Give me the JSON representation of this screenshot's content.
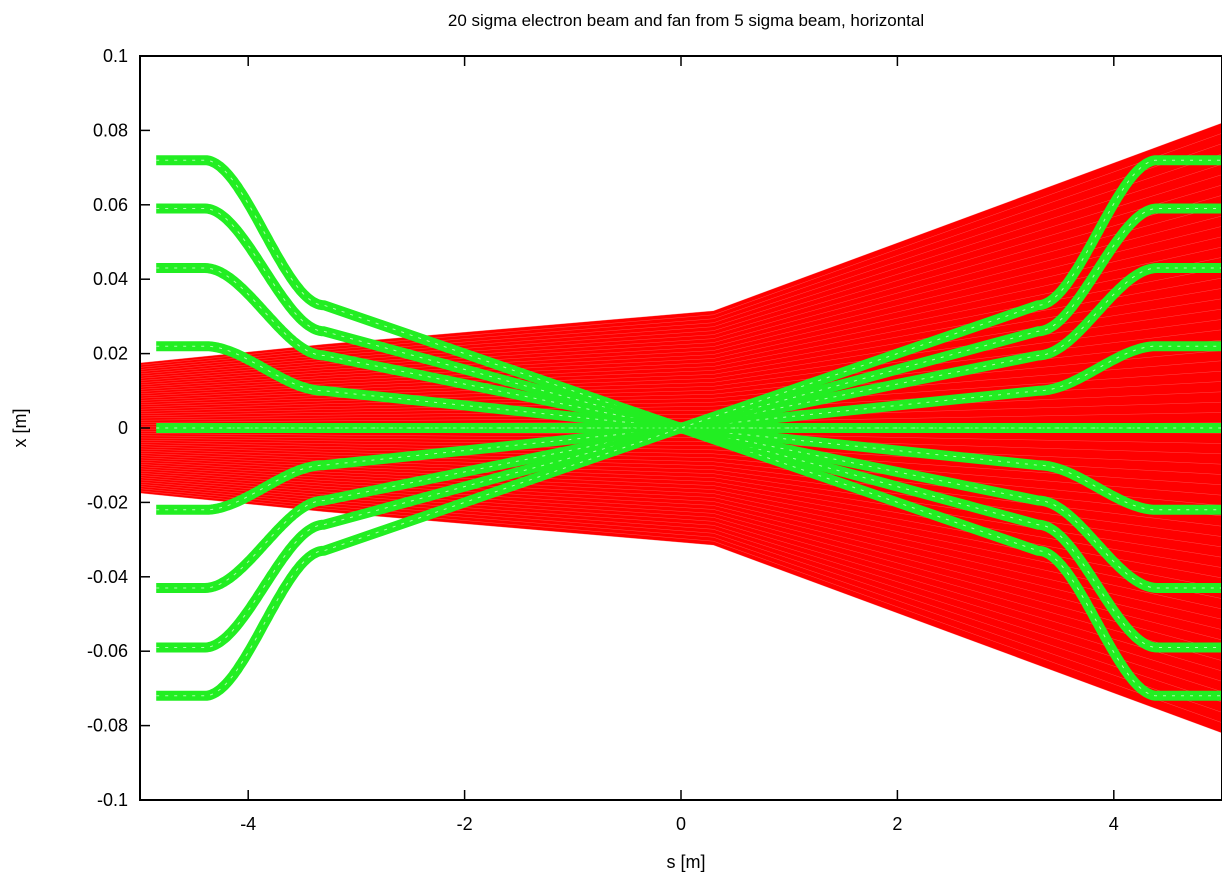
{
  "chart_data": {
    "type": "line",
    "title": "20 sigma electron beam and fan from 5 sigma beam, horizontal",
    "xlabel": "s [m]",
    "ylabel": "x [m]",
    "xlim": [
      -5,
      5
    ],
    "ylim": [
      -0.1,
      0.1
    ],
    "xticks": [
      -4,
      -2,
      0,
      2,
      4
    ],
    "xtick_labels": [
      "-4",
      "-2",
      "0",
      "2",
      "4"
    ],
    "yticks": [
      -0.1,
      -0.08,
      -0.06,
      -0.04,
      -0.02,
      0,
      0.02,
      0.04,
      0.06,
      0.08,
      0.1
    ],
    "ytick_labels": [
      "-0.1",
      "-0.08",
      "-0.06",
      "-0.04",
      "-0.02",
      "0",
      "0.02",
      "0.04",
      "0.06",
      "0.08",
      "0.1"
    ],
    "grid": false,
    "series": [
      {
        "color": "#ff0000",
        "style": "dense filled envelope of many ray lines",
        "x": [
          -5,
          -3.3,
          0.3,
          5
        ],
        "upper": [
          0.0175,
          0.0225,
          0.0315,
          0.082
        ],
        "lower": [
          -0.0175,
          -0.0225,
          -0.0315,
          -0.082
        ]
      },
      {
        "color": "#22ee22",
        "style": "thick lines with cross markers (fan trajectories)",
        "x": [
          -4.8,
          -4.4,
          -3.3,
          0,
          3.3,
          4.4,
          4.8
        ],
        "offsets": [
          0.072,
          0.059,
          0.043,
          0.022,
          0,
          -0.022,
          -0.043,
          -0.059,
          -0.072
        ],
        "mid": [
          0.033,
          0.026,
          0.0195,
          0.01,
          0,
          -0.01,
          -0.0195,
          -0.026,
          -0.033
        ]
      }
    ]
  }
}
